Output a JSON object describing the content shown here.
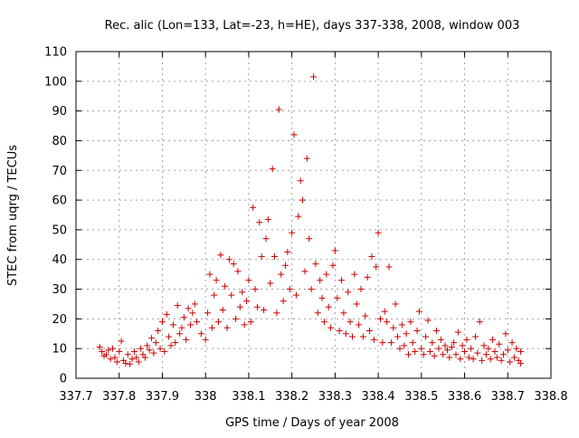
{
  "chart_data": {
    "type": "scatter",
    "title": "Rec. alic (Lon=133, Lat=-23, h=HE), days 337-338, 2008, window 003",
    "xlabel": "GPS time / Days of year 2008",
    "ylabel": "STEC from uqrg / TECUs",
    "xlim": [
      337.7,
      338.8
    ],
    "ylim": [
      0,
      110
    ],
    "xticks": [
      337.7,
      337.8,
      337.9,
      338.0,
      338.1,
      338.2,
      338.3,
      338.4,
      338.5,
      338.6,
      338.7,
      338.8
    ],
    "xtick_labels": [
      "337.7",
      "337.8",
      "337.9",
      "338",
      "338.1",
      "338.2",
      "338.3",
      "338.4",
      "338.5",
      "338.6",
      "338.7",
      "338.8"
    ],
    "yticks": [
      0,
      10,
      20,
      30,
      40,
      50,
      60,
      70,
      80,
      90,
      100,
      110
    ],
    "ytick_labels": [
      "0",
      "10",
      "20",
      "30",
      "40",
      "50",
      "60",
      "70",
      "80",
      "90",
      "100",
      "110"
    ],
    "grid": true,
    "legend": "none",
    "marker": "+",
    "marker_color": "#cc0000",
    "points": [
      [
        337.755,
        10.5
      ],
      [
        337.76,
        9.0
      ],
      [
        337.765,
        7.5
      ],
      [
        337.77,
        8.0
      ],
      [
        337.775,
        9.5
      ],
      [
        337.78,
        6.5
      ],
      [
        337.785,
        10.0
      ],
      [
        337.79,
        7.0
      ],
      [
        337.795,
        5.5
      ],
      [
        337.8,
        9.0
      ],
      [
        337.805,
        12.5
      ],
      [
        337.81,
        6.0
      ],
      [
        337.815,
        5.0
      ],
      [
        337.82,
        8.0
      ],
      [
        337.825,
        4.8
      ],
      [
        337.83,
        6.5
      ],
      [
        337.835,
        9.0
      ],
      [
        337.84,
        7.0
      ],
      [
        337.845,
        5.5
      ],
      [
        337.85,
        10.0
      ],
      [
        337.855,
        8.0
      ],
      [
        337.86,
        7.0
      ],
      [
        337.865,
        11.0
      ],
      [
        337.87,
        9.5
      ],
      [
        337.875,
        13.5
      ],
      [
        337.88,
        8.5
      ],
      [
        337.885,
        12.0
      ],
      [
        337.89,
        16.0
      ],
      [
        337.895,
        10.0
      ],
      [
        337.9,
        19.0
      ],
      [
        337.905,
        9.0
      ],
      [
        337.91,
        21.5
      ],
      [
        337.915,
        14.0
      ],
      [
        337.92,
        11.0
      ],
      [
        337.925,
        18.0
      ],
      [
        337.93,
        12.0
      ],
      [
        337.935,
        24.5
      ],
      [
        337.94,
        15.0
      ],
      [
        337.945,
        17.0
      ],
      [
        337.95,
        20.5
      ],
      [
        337.955,
        13.0
      ],
      [
        337.96,
        23.5
      ],
      [
        337.965,
        18.0
      ],
      [
        337.97,
        22.0
      ],
      [
        337.975,
        25.0
      ],
      [
        337.98,
        19.0
      ],
      [
        337.99,
        15.0
      ],
      [
        338.0,
        13.0
      ],
      [
        338.005,
        22.0
      ],
      [
        338.01,
        35.0
      ],
      [
        338.015,
        17.0
      ],
      [
        338.02,
        28.0
      ],
      [
        338.025,
        33.0
      ],
      [
        338.03,
        19.0
      ],
      [
        338.035,
        41.5
      ],
      [
        338.04,
        23.0
      ],
      [
        338.045,
        31.0
      ],
      [
        338.05,
        17.0
      ],
      [
        338.055,
        40.0
      ],
      [
        338.06,
        28.0
      ],
      [
        338.065,
        38.5
      ],
      [
        338.07,
        20.0
      ],
      [
        338.075,
        36.0
      ],
      [
        338.08,
        24.0
      ],
      [
        338.085,
        29.0
      ],
      [
        338.09,
        18.0
      ],
      [
        338.095,
        26.0
      ],
      [
        338.1,
        33.0
      ],
      [
        338.105,
        19.0
      ],
      [
        338.11,
        57.5
      ],
      [
        338.115,
        30.0
      ],
      [
        338.12,
        24.0
      ],
      [
        338.125,
        52.5
      ],
      [
        338.13,
        41.0
      ],
      [
        338.135,
        23.0
      ],
      [
        338.14,
        47.0
      ],
      [
        338.145,
        53.5
      ],
      [
        338.15,
        32.0
      ],
      [
        338.155,
        70.5
      ],
      [
        338.16,
        41.0
      ],
      [
        338.165,
        22.0
      ],
      [
        338.17,
        90.5
      ],
      [
        338.175,
        35.0
      ],
      [
        338.18,
        26.0
      ],
      [
        338.185,
        38.0
      ],
      [
        338.19,
        42.5
      ],
      [
        338.195,
        30.0
      ],
      [
        338.2,
        49.0
      ],
      [
        338.205,
        82.0
      ],
      [
        338.21,
        28.0
      ],
      [
        338.215,
        54.5
      ],
      [
        338.22,
        66.5
      ],
      [
        338.225,
        60.0
      ],
      [
        338.23,
        36.0
      ],
      [
        338.235,
        74.0
      ],
      [
        338.24,
        47.0
      ],
      [
        338.245,
        30.0
      ],
      [
        338.25,
        101.5
      ],
      [
        338.255,
        38.5
      ],
      [
        338.26,
        22.0
      ],
      [
        338.265,
        33.0
      ],
      [
        338.27,
        27.0
      ],
      [
        338.275,
        19.0
      ],
      [
        338.28,
        35.0
      ],
      [
        338.285,
        24.0
      ],
      [
        338.29,
        17.0
      ],
      [
        338.295,
        38.0
      ],
      [
        338.3,
        43.0
      ],
      [
        338.305,
        27.0
      ],
      [
        338.31,
        16.0
      ],
      [
        338.315,
        33.0
      ],
      [
        338.32,
        22.0
      ],
      [
        338.325,
        15.0
      ],
      [
        338.33,
        29.0
      ],
      [
        338.335,
        19.0
      ],
      [
        338.34,
        14.0
      ],
      [
        338.345,
        35.0
      ],
      [
        338.35,
        25.0
      ],
      [
        338.355,
        18.0
      ],
      [
        338.36,
        30.0
      ],
      [
        338.365,
        14.0
      ],
      [
        338.37,
        21.0
      ],
      [
        338.375,
        34.0
      ],
      [
        338.38,
        16.0
      ],
      [
        338.385,
        41.0
      ],
      [
        338.39,
        13.0
      ],
      [
        338.395,
        37.5
      ],
      [
        338.4,
        49.0
      ],
      [
        338.405,
        20.0
      ],
      [
        338.41,
        12.0
      ],
      [
        338.415,
        22.5
      ],
      [
        338.42,
        19.0
      ],
      [
        338.425,
        37.5
      ],
      [
        338.43,
        12.0
      ],
      [
        338.435,
        17.0
      ],
      [
        338.44,
        25.0
      ],
      [
        338.445,
        14.0
      ],
      [
        338.45,
        10.0
      ],
      [
        338.455,
        18.0
      ],
      [
        338.46,
        11.0
      ],
      [
        338.465,
        15.0
      ],
      [
        338.47,
        8.0
      ],
      [
        338.475,
        19.0
      ],
      [
        338.48,
        12.0
      ],
      [
        338.485,
        9.0
      ],
      [
        338.49,
        16.0
      ],
      [
        338.495,
        22.5
      ],
      [
        338.5,
        10.0
      ],
      [
        338.505,
        8.0
      ],
      [
        338.51,
        14.0
      ],
      [
        338.515,
        19.5
      ],
      [
        338.52,
        9.0
      ],
      [
        338.525,
        12.0
      ],
      [
        338.53,
        7.5
      ],
      [
        338.535,
        16.0
      ],
      [
        338.54,
        10.0
      ],
      [
        338.545,
        13.0
      ],
      [
        338.55,
        8.0
      ],
      [
        338.555,
        11.0
      ],
      [
        338.56,
        9.5
      ],
      [
        338.565,
        7.0
      ],
      [
        338.57,
        10.5
      ],
      [
        338.575,
        12.0
      ],
      [
        338.58,
        8.0
      ],
      [
        338.585,
        15.5
      ],
      [
        338.59,
        6.5
      ],
      [
        338.595,
        11.0
      ],
      [
        338.6,
        9.0
      ],
      [
        338.605,
        13.0
      ],
      [
        338.61,
        7.0
      ],
      [
        338.615,
        10.0
      ],
      [
        338.62,
        6.5
      ],
      [
        338.625,
        14.0
      ],
      [
        338.63,
        8.5
      ],
      [
        338.635,
        19.0
      ],
      [
        338.64,
        6.0
      ],
      [
        338.645,
        11.0
      ],
      [
        338.65,
        8.0
      ],
      [
        338.655,
        10.0
      ],
      [
        338.66,
        6.5
      ],
      [
        338.665,
        13.0
      ],
      [
        338.67,
        9.0
      ],
      [
        338.675,
        7.0
      ],
      [
        338.68,
        11.5
      ],
      [
        338.685,
        6.0
      ],
      [
        338.69,
        8.0
      ],
      [
        338.695,
        15.0
      ],
      [
        338.7,
        9.5
      ],
      [
        338.705,
        5.5
      ],
      [
        338.71,
        12.0
      ],
      [
        338.715,
        7.0
      ],
      [
        338.72,
        10.0
      ],
      [
        338.725,
        6.0
      ],
      [
        338.73,
        9.0
      ],
      [
        338.73,
        5.0
      ]
    ]
  }
}
